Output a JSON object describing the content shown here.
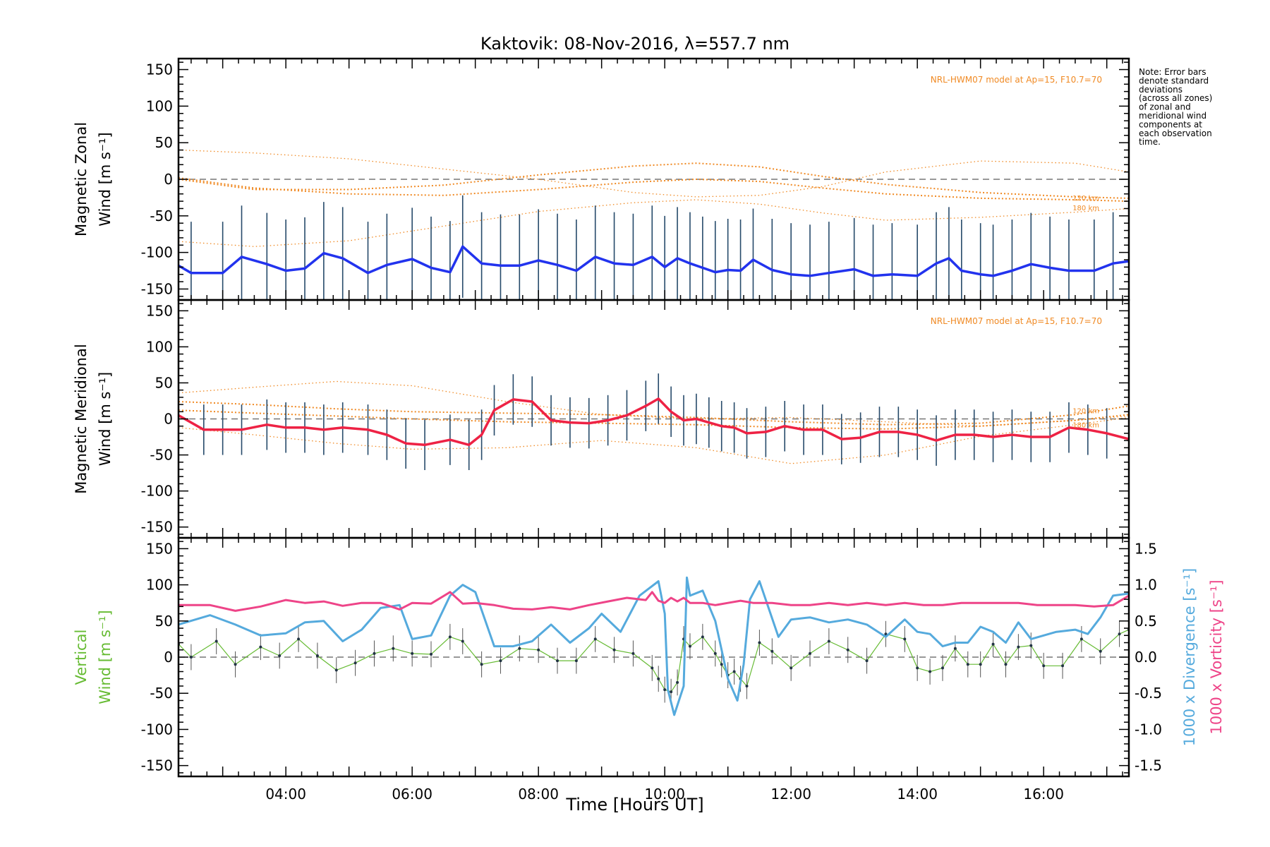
{
  "chart_data": {
    "type": "line",
    "title": "Kaktovik: 08-Nov-2016, λ=557.7 nm",
    "xlabel": "Time [Hours UT]",
    "x_tick_labels": [
      "04:00",
      "06:00",
      "08:00",
      "10:00",
      "12:00",
      "14:00",
      "16:00"
    ],
    "x_tick_hours": [
      4,
      6,
      8,
      10,
      12,
      14,
      16
    ],
    "xlim_hours": [
      2.3,
      17.35
    ],
    "note": [
      "Note: Error bars",
      "denote standard",
      "deviations",
      "(across all zones)",
      "of zonal and",
      "meridional wind",
      "components at",
      "each observation",
      "time."
    ],
    "panels": [
      {
        "ylabel": [
          "Magnetic Zonal",
          "Wind [m s⁻¹]"
        ],
        "ylim": [
          -165,
          165
        ],
        "y_tick_labels": [
          "150",
          "100",
          "50",
          "0",
          "-50",
          "-100",
          "-150"
        ],
        "y_ticks": [
          150,
          100,
          50,
          0,
          -50,
          -100,
          -150
        ],
        "model_label": "NRL-HWM07 model at Ap=15, F10.7=70",
        "model_altitude_labels": [
          "120 km",
          "180 km"
        ],
        "zero_line": true,
        "error_bar_sd": 70,
        "series": {
          "name": "",
          "color": "#2233ee",
          "x": [
            2.3,
            2.5,
            3.0,
            3.3,
            3.7,
            4.0,
            4.3,
            4.6,
            4.9,
            5.3,
            5.6,
            6.0,
            6.3,
            6.6,
            6.8,
            7.1,
            7.4,
            7.7,
            8.0,
            8.3,
            8.6,
            8.9,
            9.2,
            9.5,
            9.8,
            10.0,
            10.2,
            10.4,
            10.6,
            10.8,
            11.0,
            11.2,
            11.4,
            11.7,
            12.0,
            12.3,
            12.6,
            13.0,
            13.3,
            13.6,
            14.0,
            14.3,
            14.5,
            14.7,
            15.0,
            15.2,
            15.5,
            15.8,
            16.1,
            16.4,
            16.8,
            17.1,
            17.35
          ],
          "y": [
            -118,
            -128,
            -128,
            -106,
            -116,
            -125,
            -122,
            -101,
            -108,
            -128,
            -117,
            -109,
            -121,
            -127,
            -92,
            -115,
            -118,
            -118,
            -111,
            -117,
            -125,
            -106,
            -115,
            -117,
            -106,
            -120,
            -108,
            -115,
            -121,
            -127,
            -124,
            -125,
            -110,
            -124,
            -130,
            -132,
            -128,
            -123,
            -132,
            -130,
            -132,
            -115,
            -108,
            -125,
            -130,
            -132,
            -125,
            -116,
            -121,
            -125,
            -125,
            -115,
            -112
          ]
        },
        "model_curves": [
          {
            "x": [
              2.3,
              3.5,
              5.0,
              6.5,
              8.0,
              9.5,
              10.5,
              11.5,
              12.5,
              13.5,
              15.0,
              16.5,
              17.35
            ],
            "y": [
              40,
              36,
              28,
              14,
              0,
              -18,
              -24,
              -22,
              -10,
              10,
              25,
              22,
              10
            ]
          },
          {
            "x": [
              2.3,
              3.5,
              5.0,
              6.5,
              8.0,
              9.5,
              10.5,
              11.5,
              12.5,
              13.5,
              15.0,
              16.5,
              17.35
            ],
            "y": [
              0,
              -14,
              -14,
              -8,
              6,
              18,
              22,
              17,
              4,
              -7,
              -18,
              -24,
              -26
            ]
          },
          {
            "x": [
              2.3,
              3.5,
              5.0,
              6.5,
              8.0,
              9.5,
              10.5,
              11.5,
              12.5,
              13.5,
              15.0,
              16.5,
              17.35
            ],
            "y": [
              2,
              -12,
              -20,
              -22,
              -14,
              -4,
              0,
              -3,
              -12,
              -20,
              -26,
              -28,
              -30
            ]
          },
          {
            "x": [
              2.3,
              3.5,
              5.0,
              6.5,
              8.0,
              9.5,
              10.5,
              11.5,
              12.5,
              13.5,
              15.0,
              16.5,
              17.35
            ],
            "y": [
              -85,
              -92,
              -84,
              -64,
              -44,
              -32,
              -28,
              -34,
              -46,
              -56,
              -52,
              -45,
              -40
            ]
          }
        ]
      },
      {
        "ylabel": [
          "Magnetic Meridional",
          "Wind [m s⁻¹]"
        ],
        "ylim": [
          -165,
          165
        ],
        "y_tick_labels": [
          "150",
          "100",
          "50",
          "0",
          "-50",
          "-100",
          "-150"
        ],
        "y_ticks": [
          150,
          100,
          50,
          0,
          -50,
          -100,
          -150
        ],
        "model_label": "NRL-HWM07 model at Ap=15, F10.7=70",
        "model_altitude_labels": [
          "120 km",
          "180 km"
        ],
        "zero_line": true,
        "error_bar_sd": 35,
        "series": {
          "name": "",
          "color": "#ee2244",
          "x": [
            2.3,
            2.7,
            3.0,
            3.3,
            3.7,
            4.0,
            4.3,
            4.6,
            4.9,
            5.3,
            5.6,
            5.9,
            6.2,
            6.6,
            6.9,
            7.1,
            7.3,
            7.6,
            7.9,
            8.2,
            8.5,
            8.8,
            9.1,
            9.4,
            9.7,
            9.9,
            10.1,
            10.3,
            10.5,
            10.7,
            10.9,
            11.1,
            11.3,
            11.6,
            11.9,
            12.2,
            12.5,
            12.8,
            13.1,
            13.4,
            13.7,
            14.0,
            14.3,
            14.6,
            14.9,
            15.2,
            15.5,
            15.8,
            16.1,
            16.4,
            16.7,
            17.0,
            17.35
          ],
          "y": [
            5,
            -15,
            -15,
            -15,
            -8,
            -12,
            -12,
            -15,
            -12,
            -15,
            -22,
            -34,
            -36,
            -29,
            -36,
            -22,
            12,
            27,
            24,
            -2,
            -5,
            -6,
            -2,
            5,
            18,
            28,
            10,
            -2,
            0,
            -5,
            -10,
            -12,
            -20,
            -18,
            -10,
            -15,
            -15,
            -28,
            -26,
            -18,
            -18,
            -22,
            -30,
            -22,
            -22,
            -25,
            -22,
            -25,
            -25,
            -12,
            -15,
            -20,
            -28
          ]
        },
        "model_curves": [
          {
            "x": [
              2.3,
              3.5,
              4.8,
              6.0,
              7.5,
              9.0,
              10.5,
              12.0,
              13.5,
              15.0,
              16.5,
              17.35
            ],
            "y": [
              36,
              44,
              52,
              46,
              24,
              6,
              0,
              2,
              -4,
              -10,
              -2,
              4
            ]
          },
          {
            "x": [
              2.3,
              3.5,
              4.8,
              6.0,
              7.5,
              9.0,
              10.5,
              12.0,
              13.5,
              15.0,
              16.5,
              17.35
            ],
            "y": [
              24,
              20,
              14,
              10,
              8,
              6,
              2,
              -4,
              -8,
              -6,
              6,
              18
            ]
          },
          {
            "x": [
              2.3,
              3.5,
              4.8,
              6.0,
              7.5,
              9.0,
              10.5,
              12.0,
              13.5,
              15.0,
              16.5,
              17.35
            ],
            "y": [
              12,
              8,
              4,
              0,
              -4,
              -6,
              -8,
              -12,
              -14,
              -10,
              -2,
              6
            ]
          },
          {
            "x": [
              2.3,
              3.5,
              4.8,
              6.0,
              7.5,
              9.0,
              10.5,
              12.0,
              13.5,
              15.0,
              16.5,
              17.35
            ],
            "y": [
              -12,
              -22,
              -34,
              -42,
              -40,
              -30,
              -40,
              -62,
              -50,
              -24,
              -8,
              2
            ]
          }
        ]
      },
      {
        "ylabel": [
          "Vertical",
          "Wind [m s⁻¹]"
        ],
        "ylabel_color": "#66bb33",
        "ylim": [
          -165,
          165
        ],
        "y_tick_labels": [
          "150",
          "100",
          "50",
          "0",
          "-50",
          "-100",
          "-150"
        ],
        "y_ticks": [
          150,
          100,
          50,
          0,
          -50,
          -100,
          -150
        ],
        "right_axis": {
          "labels": [
            "1000 x Divergence [s⁻¹]",
            "1000 x Vorticity [s⁻¹]"
          ],
          "colors": [
            "#55aadd",
            "#ee4488"
          ],
          "ylim": [
            -1.65,
            1.65
          ],
          "tick_labels": [
            "1.5",
            "1.0",
            "0.5",
            "0.0",
            "-0.5",
            "-1.0",
            "-1.5"
          ],
          "ticks": [
            1.5,
            1.0,
            0.5,
            0.0,
            -0.5,
            -1.0,
            -1.5
          ]
        },
        "zero_line": true,
        "error_bar_sd": 18,
        "series": [
          {
            "name": "",
            "axis": "left",
            "color": "#66bb33",
            "x": [
              2.3,
              2.5,
              2.9,
              3.2,
              3.6,
              3.9,
              4.2,
              4.5,
              4.8,
              5.1,
              5.4,
              5.7,
              6.0,
              6.3,
              6.6,
              6.8,
              7.1,
              7.4,
              7.7,
              8.0,
              8.3,
              8.6,
              8.9,
              9.2,
              9.5,
              9.8,
              9.9,
              10.0,
              10.1,
              10.2,
              10.3,
              10.4,
              10.6,
              10.8,
              10.9,
              11.0,
              11.1,
              11.2,
              11.3,
              11.5,
              11.7,
              12.0,
              12.3,
              12.6,
              12.9,
              13.2,
              13.5,
              13.8,
              14.0,
              14.2,
              14.4,
              14.6,
              14.8,
              15.0,
              15.2,
              15.4,
              15.6,
              15.8,
              16.0,
              16.3,
              16.6,
              16.9,
              17.2,
              17.35
            ],
            "y": [
              18,
              0,
              22,
              -10,
              14,
              2,
              25,
              2,
              -18,
              -8,
              5,
              12,
              5,
              4,
              28,
              22,
              -10,
              -5,
              12,
              10,
              -5,
              -5,
              25,
              10,
              5,
              -15,
              -30,
              -45,
              -48,
              -35,
              25,
              15,
              28,
              5,
              -10,
              -25,
              -20,
              -30,
              -40,
              20,
              8,
              -15,
              5,
              22,
              10,
              -5,
              32,
              25,
              -15,
              -20,
              -15,
              12,
              -10,
              -10,
              18,
              -10,
              14,
              16,
              -12,
              -12,
              25,
              8,
              32,
              38
            ]
          },
          {
            "name": "",
            "axis": "right",
            "color": "#55aadd",
            "x": [
              2.3,
              2.8,
              3.2,
              3.6,
              4.0,
              4.3,
              4.6,
              4.9,
              5.2,
              5.5,
              5.8,
              6.0,
              6.3,
              6.6,
              6.8,
              7.0,
              7.3,
              7.6,
              7.9,
              8.2,
              8.5,
              8.8,
              9.0,
              9.3,
              9.6,
              9.9,
              10.0,
              10.05,
              10.15,
              10.3,
              10.35,
              10.4,
              10.6,
              10.8,
              11.0,
              11.15,
              11.25,
              11.35,
              11.5,
              11.8,
              12.0,
              12.3,
              12.6,
              12.9,
              13.2,
              13.5,
              13.8,
              14.0,
              14.2,
              14.4,
              14.6,
              14.8,
              15.0,
              15.2,
              15.4,
              15.6,
              15.8,
              16.0,
              16.2,
              16.5,
              16.7,
              16.9,
              17.1,
              17.35
            ],
            "y": [
              0.45,
              0.58,
              0.45,
              0.3,
              0.33,
              0.48,
              0.5,
              0.22,
              0.38,
              0.68,
              0.72,
              0.25,
              0.3,
              0.85,
              1.0,
              0.9,
              0.15,
              0.15,
              0.22,
              0.45,
              0.2,
              0.4,
              0.6,
              0.35,
              0.85,
              1.05,
              0.6,
              -0.45,
              -0.8,
              -0.4,
              1.1,
              0.85,
              0.92,
              0.5,
              -0.3,
              -0.6,
              -0.1,
              0.8,
              1.05,
              0.28,
              0.52,
              0.55,
              0.48,
              0.52,
              0.45,
              0.28,
              0.52,
              0.35,
              0.32,
              0.15,
              0.2,
              0.2,
              0.42,
              0.35,
              0.2,
              0.48,
              0.25,
              0.3,
              0.35,
              0.38,
              0.32,
              0.55,
              0.85,
              0.88
            ]
          },
          {
            "name": "",
            "axis": "right",
            "color": "#ee4488",
            "x": [
              2.3,
              2.8,
              3.2,
              3.6,
              4.0,
              4.3,
              4.6,
              4.9,
              5.2,
              5.5,
              5.8,
              6.0,
              6.3,
              6.6,
              6.8,
              7.0,
              7.3,
              7.6,
              7.9,
              8.2,
              8.5,
              8.8,
              9.1,
              9.4,
              9.7,
              9.8,
              9.9,
              10.0,
              10.1,
              10.2,
              10.3,
              10.4,
              10.6,
              10.8,
              11.0,
              11.2,
              11.4,
              11.7,
              12.0,
              12.3,
              12.6,
              12.9,
              13.2,
              13.5,
              13.8,
              14.1,
              14.4,
              14.7,
              15.0,
              15.3,
              15.6,
              15.9,
              16.2,
              16.5,
              16.8,
              17.1,
              17.35
            ],
            "y": [
              0.72,
              0.72,
              0.64,
              0.7,
              0.79,
              0.75,
              0.77,
              0.71,
              0.75,
              0.75,
              0.66,
              0.75,
              0.74,
              0.9,
              0.74,
              0.75,
              0.72,
              0.67,
              0.66,
              0.69,
              0.66,
              0.72,
              0.77,
              0.82,
              0.79,
              0.9,
              0.78,
              0.75,
              0.82,
              0.77,
              0.82,
              0.75,
              0.75,
              0.72,
              0.75,
              0.78,
              0.75,
              0.75,
              0.72,
              0.72,
              0.75,
              0.72,
              0.75,
              0.72,
              0.75,
              0.72,
              0.72,
              0.75,
              0.75,
              0.75,
              0.75,
              0.72,
              0.72,
              0.72,
              0.7,
              0.72,
              0.85
            ]
          }
        ]
      }
    ]
  }
}
